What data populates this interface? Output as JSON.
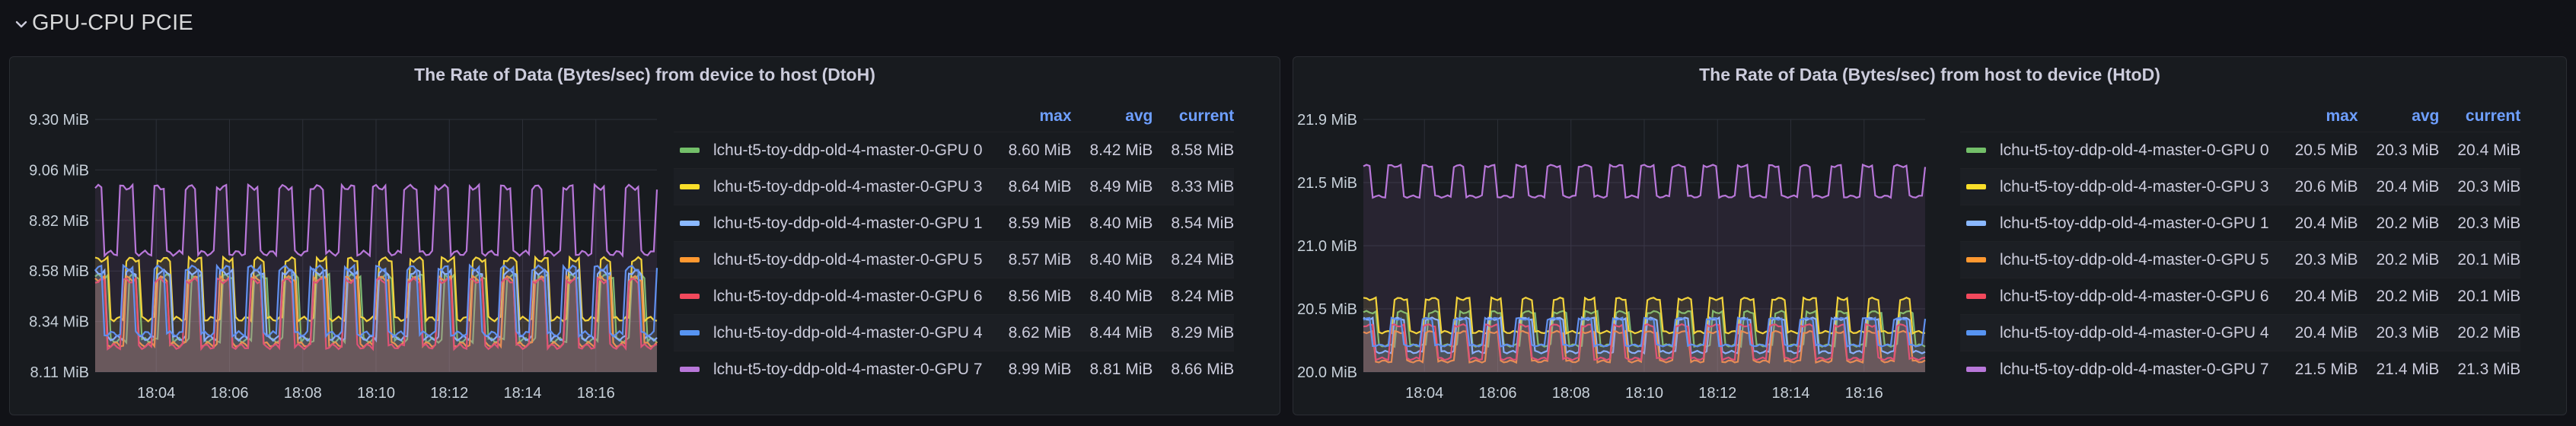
{
  "row": {
    "title": "GPU-CPU PCIE",
    "chevron_icon": "chevron-down-icon"
  },
  "legend_headers": {
    "max": "max",
    "avg": "avg",
    "current": "current"
  },
  "colors": {
    "GPU 0": "#73bf69",
    "GPU 3": "#fade2a",
    "GPU 1": "#8ab8ff",
    "GPU 5": "#ff9830",
    "GPU 6": "#f2495c",
    "GPU 4": "#5794f2",
    "GPU 7": "#b877d9"
  },
  "chart_data": [
    {
      "type": "line",
      "title": "The Rate of Data (Bytes/sec) from device to host (DtoH)",
      "xlabel": "",
      "ylabel": "",
      "unit": "MiB",
      "y_ticks": [
        "9.30 MiB",
        "9.06 MiB",
        "8.82 MiB",
        "8.58 MiB",
        "8.34 MiB",
        "8.11 MiB"
      ],
      "ylim": [
        8.11,
        9.3
      ],
      "x_ticks": [
        "18:04",
        "18:06",
        "18:08",
        "18:10",
        "18:12",
        "18:14",
        "18:16"
      ],
      "x_range": [
        "18:02:20",
        "18:17:40"
      ],
      "grid": true,
      "legend_placement": "right",
      "series": [
        {
          "name": "lchu-t5-toy-ddp-old-4-master-0-GPU 0",
          "color_key": "GPU 0",
          "max": "8.60 MiB",
          "avg": "8.42 MiB",
          "current": "8.58 MiB",
          "high": 8.56,
          "low": 8.26
        },
        {
          "name": "lchu-t5-toy-ddp-old-4-master-0-GPU 3",
          "color_key": "GPU 3",
          "max": "8.64 MiB",
          "avg": "8.49 MiB",
          "current": "8.33 MiB",
          "high": 8.64,
          "low": 8.36
        },
        {
          "name": "lchu-t5-toy-ddp-old-4-master-0-GPU 1",
          "color_key": "GPU 1",
          "max": "8.59 MiB",
          "avg": "8.40 MiB",
          "current": "8.54 MiB",
          "high": 8.58,
          "low": 8.27
        },
        {
          "name": "lchu-t5-toy-ddp-old-4-master-0-GPU 5",
          "color_key": "GPU 5",
          "max": "8.57 MiB",
          "avg": "8.40 MiB",
          "current": "8.24 MiB",
          "high": 8.55,
          "low": 8.24
        },
        {
          "name": "lchu-t5-toy-ddp-old-4-master-0-GPU 6",
          "color_key": "GPU 6",
          "max": "8.56 MiB",
          "avg": "8.40 MiB",
          "current": "8.24 MiB",
          "high": 8.54,
          "low": 8.23
        },
        {
          "name": "lchu-t5-toy-ddp-old-4-master-0-GPU 4",
          "color_key": "GPU 4",
          "max": "8.62 MiB",
          "avg": "8.44 MiB",
          "current": "8.29 MiB",
          "high": 8.6,
          "low": 8.29
        },
        {
          "name": "lchu-t5-toy-ddp-old-4-master-0-GPU 7",
          "color_key": "GPU 7",
          "max": "8.99 MiB",
          "avg": "8.81 MiB",
          "current": "8.66 MiB",
          "high": 8.98,
          "low": 8.67
        }
      ]
    },
    {
      "type": "line",
      "title": "The Rate of Data (Bytes/sec) from host to device (HtoD)",
      "xlabel": "",
      "ylabel": "",
      "unit": "MiB",
      "y_ticks": [
        "21.9 MiB",
        "21.5 MiB",
        "21.0 MiB",
        "20.5 MiB",
        "20.0 MiB"
      ],
      "ylim": [
        20.0,
        21.9
      ],
      "x_ticks": [
        "18:04",
        "18:06",
        "18:08",
        "18:10",
        "18:12",
        "18:14",
        "18:16"
      ],
      "x_range": [
        "18:02:20",
        "18:17:40"
      ],
      "grid": true,
      "legend_placement": "right",
      "series": [
        {
          "name": "lchu-t5-toy-ddp-old-4-master-0-GPU 0",
          "color_key": "GPU 0",
          "max": "20.5 MiB",
          "avg": "20.3 MiB",
          "current": "20.4 MiB",
          "high": 20.45,
          "low": 20.2
        },
        {
          "name": "lchu-t5-toy-ddp-old-4-master-0-GPU 3",
          "color_key": "GPU 3",
          "max": "20.6 MiB",
          "avg": "20.4 MiB",
          "current": "20.3 MiB",
          "high": 20.55,
          "low": 20.3
        },
        {
          "name": "lchu-t5-toy-ddp-old-4-master-0-GPU 1",
          "color_key": "GPU 1",
          "max": "20.4 MiB",
          "avg": "20.2 MiB",
          "current": "20.3 MiB",
          "high": 20.4,
          "low": 20.15
        },
        {
          "name": "lchu-t5-toy-ddp-old-4-master-0-GPU 5",
          "color_key": "GPU 5",
          "max": "20.3 MiB",
          "avg": "20.2 MiB",
          "current": "20.1 MiB",
          "high": 20.3,
          "low": 20.08
        },
        {
          "name": "lchu-t5-toy-ddp-old-4-master-0-GPU 6",
          "color_key": "GPU 6",
          "max": "20.4 MiB",
          "avg": "20.2 MiB",
          "current": "20.1 MiB",
          "high": 20.35,
          "low": 20.1
        },
        {
          "name": "lchu-t5-toy-ddp-old-4-master-0-GPU 4",
          "color_key": "GPU 4",
          "max": "20.4 MiB",
          "avg": "20.3 MiB",
          "current": "20.2 MiB",
          "high": 20.4,
          "low": 20.2
        },
        {
          "name": "lchu-t5-toy-ddp-old-4-master-0-GPU 7",
          "color_key": "GPU 7",
          "max": "21.5 MiB",
          "avg": "21.4 MiB",
          "current": "21.3 MiB",
          "high": 21.55,
          "low": 21.32
        }
      ]
    }
  ]
}
